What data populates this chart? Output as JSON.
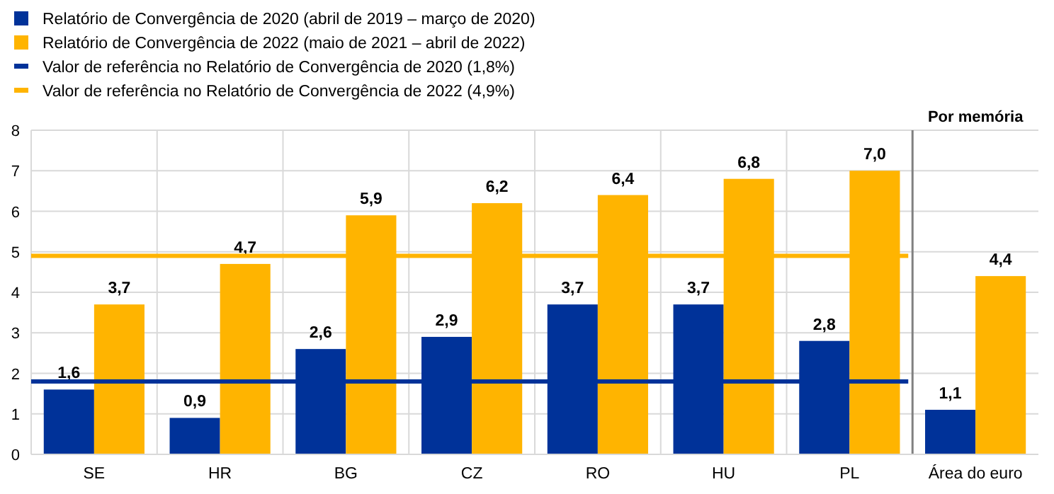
{
  "chart_data": {
    "type": "bar",
    "categories": [
      "SE",
      "HR",
      "BG",
      "CZ",
      "RO",
      "HU",
      "PL",
      "Área do euro"
    ],
    "series": [
      {
        "name": "Relatório de Convergência de 2020 (abril de 2019 – março de 2020)",
        "color": "#003299",
        "values": [
          1.6,
          0.9,
          2.6,
          2.9,
          3.7,
          3.7,
          2.8,
          1.1
        ],
        "value_labels": [
          "1,6",
          "0,9",
          "2,6",
          "2,9",
          "3,7",
          "3,7",
          "2,8",
          "1,1"
        ]
      },
      {
        "name": "Relatório de Convergência de 2022 (maio de 2021 – abril de 2022)",
        "color": "#ffb400",
        "values": [
          3.7,
          4.7,
          5.9,
          6.2,
          6.4,
          6.8,
          7.0,
          4.4
        ],
        "value_labels": [
          "3,7",
          "4,7",
          "5,9",
          "6,2",
          "6,4",
          "6,8",
          "7,0",
          "4,4"
        ]
      }
    ],
    "ref_lines": [
      {
        "axis": "y",
        "value": 1.8,
        "label": "Valor de referência no Relatório de Convergência de 2020 (1,8%)",
        "color": "#003299"
      },
      {
        "axis": "y",
        "value": 4.9,
        "label": "Valor de referência no Relatório de Convergência de 2022 (4,9%)",
        "color": "#ffb400"
      },
      {
        "axis": "x",
        "value": "Área do euro",
        "color": "#808080"
      }
    ],
    "annotations": [
      "Por memória"
    ],
    "ylim": [
      0,
      8
    ],
    "yticks": [
      0,
      1,
      2,
      3,
      4,
      5,
      6,
      7,
      8
    ],
    "grid": true,
    "legend": "top left"
  }
}
